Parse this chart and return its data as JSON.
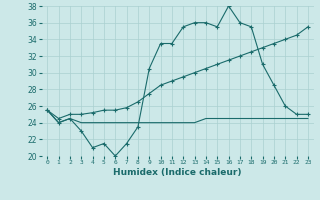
{
  "xlabel": "Humidex (Indice chaleur)",
  "x": [
    0,
    1,
    2,
    3,
    4,
    5,
    6,
    7,
    8,
    9,
    10,
    11,
    12,
    13,
    14,
    15,
    16,
    17,
    18,
    19,
    20,
    21,
    22,
    23
  ],
  "line1": [
    25.5,
    24.0,
    24.5,
    23.0,
    21.0,
    21.5,
    20.0,
    21.5,
    23.5,
    30.5,
    33.5,
    33.5,
    35.5,
    36.0,
    36.0,
    35.5,
    38.0,
    36.0,
    35.5,
    31.0,
    28.5,
    26.0,
    25.0,
    25.0
  ],
  "line2": [
    25.5,
    24.5,
    25.0,
    25.0,
    25.2,
    25.5,
    25.5,
    25.8,
    26.5,
    27.5,
    28.5,
    29.0,
    29.5,
    30.0,
    30.5,
    31.0,
    31.5,
    32.0,
    32.5,
    33.0,
    33.5,
    34.0,
    34.5,
    35.5
  ],
  "line3": [
    25.5,
    24.0,
    24.5,
    24.0,
    24.0,
    24.0,
    24.0,
    24.0,
    24.0,
    24.0,
    24.0,
    24.0,
    24.0,
    24.0,
    24.5,
    24.5,
    24.5,
    24.5,
    24.5,
    24.5,
    24.5,
    24.5,
    24.5,
    24.5
  ],
  "line_color": "#1a6b6b",
  "bg_color": "#cce8e8",
  "grid_color": "#aad0d0",
  "ylim": [
    20,
    38
  ],
  "yticks": [
    20,
    22,
    24,
    26,
    28,
    30,
    32,
    34,
    36,
    38
  ],
  "xlim": [
    -0.5,
    23.5
  ]
}
